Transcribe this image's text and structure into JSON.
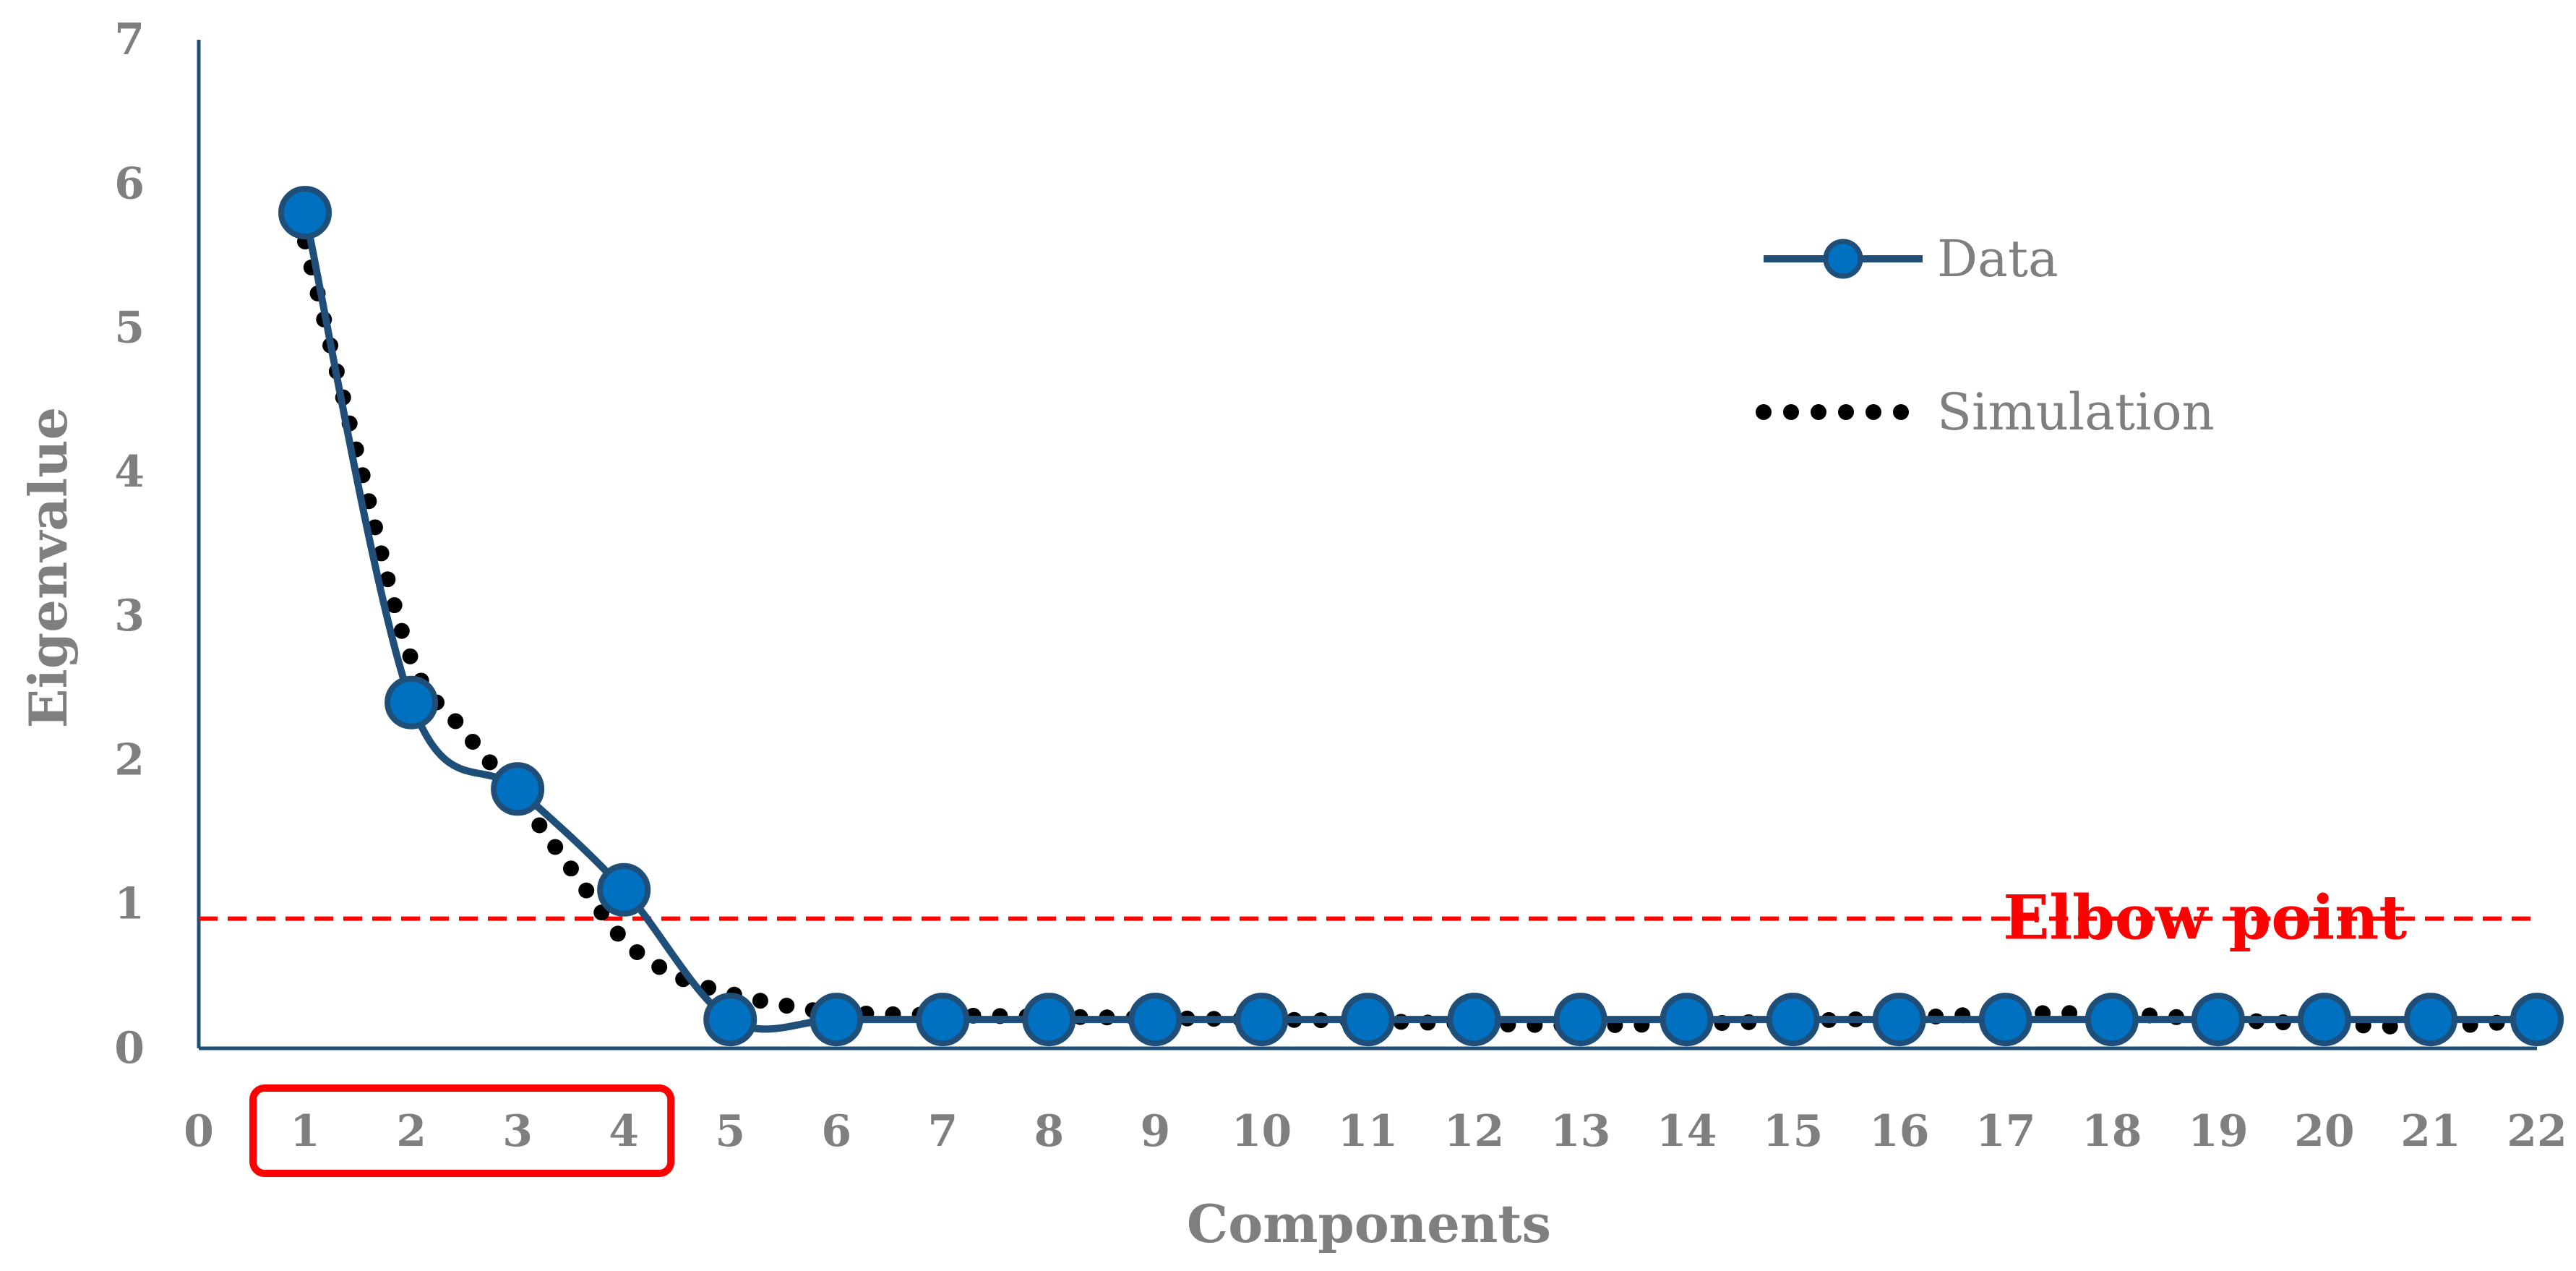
{
  "chart_data": {
    "type": "line",
    "xlabel": "Components",
    "ylabel": "Eigenvalue",
    "xlim": [
      0,
      22
    ],
    "ylim": [
      0,
      7
    ],
    "x_ticks": [
      "0",
      "1",
      "2",
      "3",
      "4",
      "5",
      "6",
      "7",
      "8",
      "9",
      "10",
      "11",
      "12",
      "13",
      "14",
      "15",
      "16",
      "17",
      "18",
      "19",
      "20",
      "21",
      "22"
    ],
    "y_ticks": [
      "0",
      "1",
      "2",
      "3",
      "4",
      "5",
      "6",
      "7"
    ],
    "grid": false,
    "legend_position": "top-right",
    "series": [
      {
        "name": "Data",
        "style": "solid line with circle markers",
        "color": "#0070c0",
        "line_color": "#1f4e79",
        "x": [
          1,
          2,
          3,
          4,
          5,
          6,
          7,
          8,
          9,
          10,
          11,
          12,
          13,
          14,
          15,
          16,
          17,
          18,
          19,
          20,
          21,
          22
        ],
        "values": [
          5.8,
          2.4,
          1.8,
          1.1,
          0.2,
          0.2,
          0.2,
          0.2,
          0.2,
          0.2,
          0.2,
          0.2,
          0.2,
          0.2,
          0.2,
          0.2,
          0.2,
          0.2,
          0.2,
          0.2,
          0.2,
          0.2
        ]
      },
      {
        "name": "Simulation",
        "style": "dotted line",
        "color": "#000000",
        "x": [
          1,
          1.5,
          2,
          2.5,
          3,
          3.5,
          4,
          4.5,
          5,
          5.5,
          6,
          7,
          8,
          9,
          10,
          11,
          12,
          13,
          14,
          15,
          16,
          17,
          18,
          19,
          20,
          21,
          22
        ],
        "values": [
          5.6,
          4.1,
          2.7,
          2.2,
          1.75,
          1.25,
          0.75,
          0.5,
          0.38,
          0.3,
          0.25,
          0.23,
          0.22,
          0.21,
          0.2,
          0.19,
          0.17,
          0.16,
          0.17,
          0.19,
          0.21,
          0.24,
          0.24,
          0.2,
          0.17,
          0.15,
          0.2
        ]
      }
    ],
    "reference_line": {
      "label": "Elbow point",
      "y": 0.9,
      "color": "#ff0000",
      "style": "dashed"
    },
    "highlight_box": {
      "x_from": 1,
      "x_to": 4,
      "color": "#ff0000"
    }
  }
}
